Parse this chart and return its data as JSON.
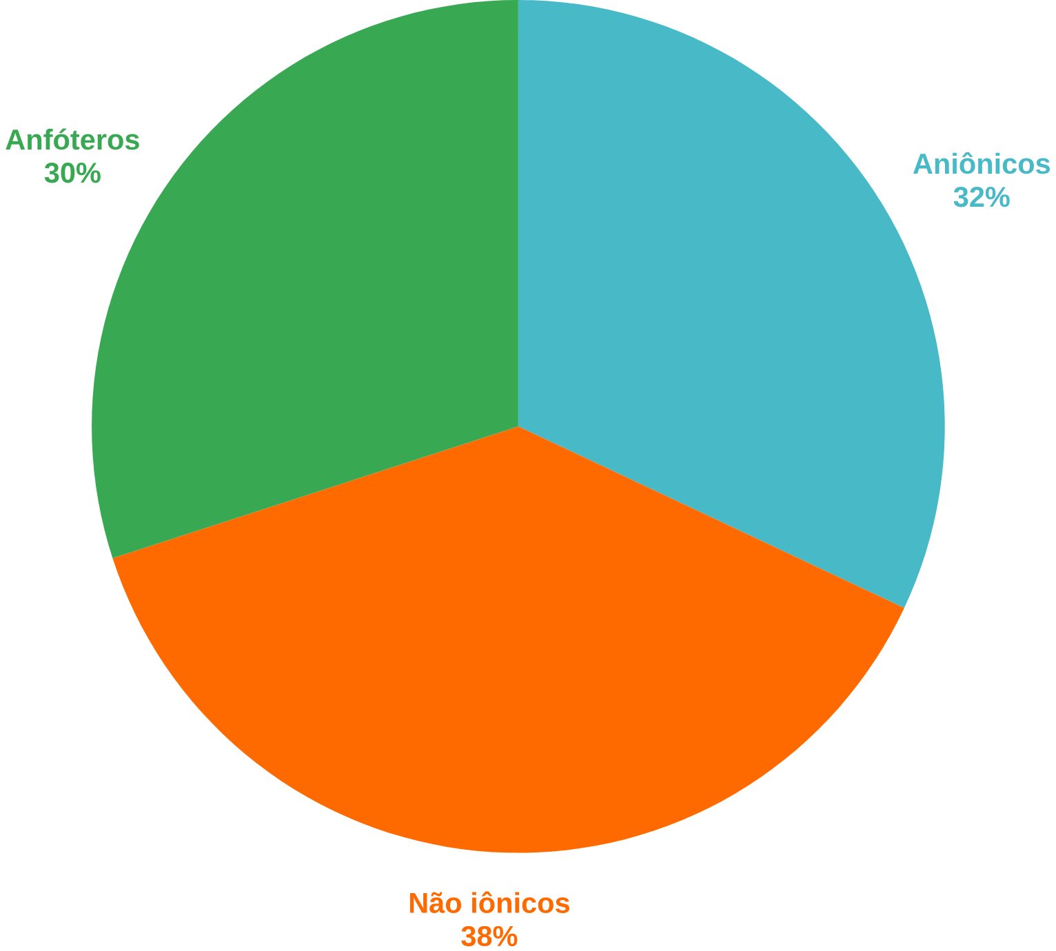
{
  "chart_data": {
    "type": "pie",
    "categories": [
      "Aniônicos",
      "Não iônicos",
      "Anfóteros"
    ],
    "values": [
      32,
      38,
      30
    ],
    "colors": [
      "#47b9c7",
      "#ff6a00",
      "#38a852"
    ],
    "value_labels": [
      "32%",
      "38%",
      "30%"
    ]
  }
}
